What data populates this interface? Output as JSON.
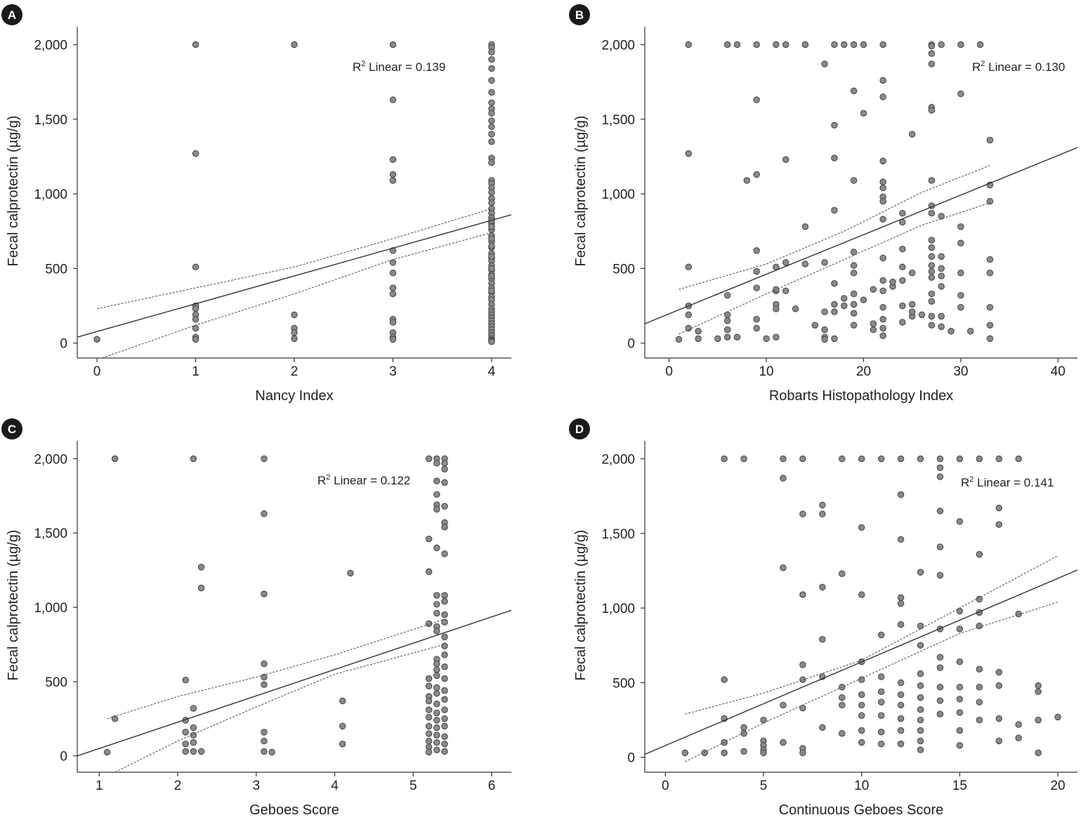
{
  "chart_data": [
    {
      "type": "scatter",
      "panel_label": "A",
      "xlabel": "Nancy Index",
      "ylabel": "Fecal calprotectin (µg/g)",
      "annotation_prefix": "R",
      "annotation_sup": "2",
      "annotation_rest": " Linear = 0.139",
      "xlim": [
        -0.2,
        4.2
      ],
      "ylim": [
        -100,
        2120
      ],
      "x_ticks": [
        0,
        1,
        2,
        3,
        4
      ],
      "x_tick_labels": [
        "0",
        "1",
        "2",
        "3",
        "4"
      ],
      "y_ticks": [
        0,
        500,
        1000,
        1500,
        2000
      ],
      "y_tick_labels": [
        "0",
        "500",
        "1,000",
        "1,500",
        "2,000"
      ],
      "fit_line": [
        [
          -0.2,
          40
        ],
        [
          4.2,
          860
        ]
      ],
      "ci_upper": [
        [
          0,
          230
        ],
        [
          1,
          370
        ],
        [
          2,
          510
        ],
        [
          3,
          700
        ],
        [
          4,
          900
        ]
      ],
      "ci_lower": [
        [
          0.05,
          -100
        ],
        [
          1,
          120
        ],
        [
          2,
          330
        ],
        [
          3,
          560
        ],
        [
          4,
          740
        ]
      ],
      "x": [
        0,
        1,
        1,
        1,
        1,
        1,
        1,
        1,
        1,
        1,
        1,
        2,
        2,
        2,
        2,
        2,
        3,
        3,
        3,
        3,
        3,
        3,
        3,
        3,
        3,
        3,
        3,
        3,
        3,
        3,
        3,
        4,
        4,
        4,
        4,
        4,
        4,
        4,
        4,
        4,
        4,
        4,
        4,
        4,
        4,
        4,
        4,
        4,
        4,
        4,
        4,
        4,
        4,
        4,
        4,
        4,
        4,
        4,
        4,
        4,
        4,
        4,
        4,
        4,
        4,
        4,
        4,
        4,
        4,
        4,
        4,
        4,
        4,
        4,
        4,
        4,
        4,
        4,
        4,
        4,
        4,
        4,
        4,
        4,
        4,
        4,
        4,
        4,
        4,
        4,
        4,
        4,
        4,
        4,
        4,
        4
      ],
      "y": [
        25,
        2000,
        1270,
        510,
        250,
        230,
        190,
        160,
        100,
        40,
        25,
        2000,
        190,
        100,
        70,
        30,
        2000,
        1630,
        1230,
        1130,
        1090,
        620,
        540,
        470,
        370,
        330,
        160,
        140,
        70,
        40,
        25,
        2000,
        1980,
        1950,
        1900,
        1840,
        1760,
        1680,
        1610,
        1570,
        1540,
        1490,
        1450,
        1400,
        1350,
        1240,
        1210,
        1090,
        1070,
        1040,
        1010,
        970,
        940,
        900,
        870,
        840,
        800,
        760,
        720,
        680,
        640,
        600,
        570,
        550,
        520,
        490,
        460,
        430,
        400,
        370,
        340,
        310,
        290,
        260,
        230,
        210,
        190,
        170,
        150,
        130,
        110,
        90,
        70,
        50,
        30,
        20,
        15,
        10,
        350,
        450,
        500,
        580,
        650,
        700,
        780,
        820
      ]
    },
    {
      "type": "scatter",
      "panel_label": "B",
      "xlabel": "Robarts Histopathology Index",
      "ylabel": "Fecal calprotectin (µg/g)",
      "annotation_prefix": "R",
      "annotation_sup": "2",
      "annotation_rest": " Linear = 0.130",
      "xlim": [
        -2.5,
        42
      ],
      "ylim": [
        -100,
        2120
      ],
      "x_ticks": [
        0,
        10,
        20,
        30,
        40
      ],
      "x_tick_labels": [
        "0",
        "10",
        "20",
        "30",
        "40"
      ],
      "y_ticks": [
        0,
        500,
        1000,
        1500,
        2000
      ],
      "y_tick_labels": [
        "0",
        "500",
        "1,000",
        "1,500",
        "2,000"
      ],
      "fit_line": [
        [
          -2.5,
          130
        ],
        [
          42,
          1310
        ]
      ],
      "ci_upper": [
        [
          1,
          360
        ],
        [
          10,
          530
        ],
        [
          18,
          750
        ],
        [
          26,
          1010
        ],
        [
          33,
          1190
        ]
      ],
      "ci_lower": [
        [
          1,
          60
        ],
        [
          10,
          330
        ],
        [
          18,
          560
        ],
        [
          26,
          790
        ],
        [
          33,
          940
        ]
      ],
      "x": [
        1,
        2,
        2,
        2,
        2,
        2,
        2,
        3,
        3,
        5,
        6,
        6,
        6,
        6,
        6,
        6,
        7,
        7,
        9,
        9,
        9,
        9,
        9,
        9,
        9,
        9,
        8,
        11,
        11,
        11,
        11,
        11,
        11,
        12,
        12,
        12,
        12,
        13,
        14,
        14,
        14,
        15,
        16,
        16,
        16,
        16,
        16,
        16,
        17,
        17,
        17,
        17,
        17,
        17,
        17,
        17,
        18,
        18,
        18,
        19,
        19,
        19,
        19,
        19,
        19,
        19,
        19,
        19,
        19,
        20,
        20,
        20,
        21,
        21,
        22,
        22,
        22,
        22,
        22,
        22,
        22,
        22,
        22,
        22,
        22,
        22,
        22,
        22,
        22,
        22,
        23,
        24,
        24,
        24,
        24,
        24,
        24,
        25,
        25,
        25,
        25,
        26,
        27,
        27,
        27,
        27,
        27,
        27,
        27,
        27,
        27,
        27,
        27,
        27,
        27,
        27,
        27,
        27,
        27,
        27,
        27,
        28,
        28,
        28,
        28,
        28,
        28,
        28,
        28,
        29,
        30,
        30,
        30,
        30,
        30,
        30,
        30,
        31,
        32,
        33,
        33,
        33,
        33,
        33,
        33,
        33,
        33,
        14,
        10,
        11,
        21,
        23,
        25,
        24
      ],
      "y": [
        25,
        2000,
        1270,
        510,
        250,
        190,
        100,
        80,
        30,
        30,
        2000,
        320,
        190,
        150,
        90,
        40,
        40,
        2000,
        2000,
        1630,
        1130,
        620,
        480,
        370,
        160,
        100,
        1090,
        2000,
        510,
        350,
        260,
        230,
        40,
        2000,
        1230,
        540,
        350,
        230,
        2000,
        780,
        530,
        120,
        1870,
        540,
        210,
        90,
        40,
        25,
        2000,
        1460,
        1240,
        890,
        400,
        260,
        210,
        30,
        2000,
        300,
        250,
        2000,
        1690,
        1090,
        610,
        520,
        470,
        330,
        260,
        200,
        120,
        2000,
        1540,
        290,
        360,
        90,
        2000,
        1760,
        1650,
        1220,
        1080,
        1040,
        980,
        950,
        830,
        570,
        420,
        350,
        240,
        160,
        100,
        50,
        380,
        870,
        810,
        630,
        510,
        250,
        140,
        1400,
        470,
        260,
        180,
        190,
        2000,
        1990,
        1940,
        1870,
        1580,
        1560,
        1090,
        920,
        870,
        690,
        640,
        580,
        520,
        480,
        440,
        330,
        280,
        180,
        120,
        2000,
        850,
        580,
        500,
        450,
        380,
        180,
        110,
        80,
        2000,
        1670,
        780,
        670,
        470,
        320,
        240,
        80,
        2000,
        1360,
        1060,
        950,
        560,
        470,
        240,
        120,
        30,
        2000,
        30,
        360,
        130,
        410,
        210,
        420
      ]
    },
    {
      "type": "scatter",
      "panel_label": "C",
      "xlabel": "Geboes Score",
      "ylabel": "Fecal calprotectin (µg/g)",
      "annotation_prefix": "R",
      "annotation_sup": "2",
      "annotation_rest": " Linear = 0.122",
      "xlim": [
        0.72,
        6.25
      ],
      "ylim": [
        -110,
        2120
      ],
      "x_ticks": [
        1,
        2,
        3,
        4,
        5,
        6
      ],
      "x_tick_labels": [
        "1",
        "2",
        "3",
        "4",
        "5",
        "6"
      ],
      "y_ticks": [
        0,
        500,
        1000,
        1500,
        2000
      ],
      "y_tick_labels": [
        "0",
        "500",
        "1,000",
        "1,500",
        "2,000"
      ],
      "fit_line": [
        [
          0.72,
          0
        ],
        [
          6.25,
          980
        ]
      ],
      "ci_upper": [
        [
          1.1,
          250
        ],
        [
          2,
          400
        ],
        [
          3,
          530
        ],
        [
          4,
          680
        ],
        [
          5.4,
          920
        ]
      ],
      "ci_lower": [
        [
          1.2,
          -110
        ],
        [
          2,
          100
        ],
        [
          3,
          330
        ],
        [
          4,
          550
        ],
        [
          5.4,
          750
        ]
      ],
      "x": [
        1.1,
        1.2,
        1.2,
        2.1,
        2.1,
        2.1,
        2.1,
        2.1,
        2.2,
        2.2,
        2.2,
        2.2,
        2.2,
        2.2,
        2.3,
        2.3,
        2.3,
        3.1,
        3.1,
        3.1,
        3.1,
        3.1,
        3.1,
        3.1,
        3.1,
        3.1,
        3.2,
        4.1,
        4.1,
        4.1,
        4.2,
        5.2,
        5.2,
        5.2,
        5.2,
        5.2,
        5.2,
        5.2,
        5.2,
        5.2,
        5.2,
        5.2,
        5.2,
        5.2,
        5.2,
        5.2,
        5.3,
        5.3,
        5.3,
        5.3,
        5.3,
        5.3,
        5.3,
        5.3,
        5.3,
        5.3,
        5.3,
        5.3,
        5.3,
        5.3,
        5.3,
        5.3,
        5.3,
        5.3,
        5.3,
        5.3,
        5.3,
        5.3,
        5.3,
        5.3,
        5.3,
        5.4,
        5.4,
        5.4,
        5.4,
        5.4,
        5.4,
        5.4,
        5.4,
        5.4,
        5.4,
        5.4,
        5.4,
        5.4,
        5.4,
        5.4,
        5.4,
        5.4,
        5.4,
        5.4,
        5.4,
        5.4,
        5.4,
        5.4,
        5.4,
        5.4
      ],
      "y": [
        25,
        2000,
        250,
        510,
        240,
        160,
        80,
        30,
        2000,
        320,
        190,
        140,
        90,
        30,
        1270,
        1130,
        30,
        2000,
        1630,
        1090,
        620,
        530,
        480,
        160,
        100,
        30,
        25,
        370,
        200,
        80,
        1230,
        2000,
        1460,
        1240,
        890,
        520,
        470,
        400,
        370,
        310,
        260,
        200,
        150,
        100,
        60,
        25,
        2000,
        1970,
        1850,
        1760,
        1690,
        1660,
        1400,
        1080,
        1020,
        960,
        870,
        840,
        650,
        620,
        580,
        540,
        460,
        420,
        350,
        290,
        240,
        190,
        140,
        90,
        40,
        2000,
        1970,
        1930,
        1840,
        1680,
        1570,
        1540,
        1360,
        1080,
        1040,
        950,
        900,
        800,
        740,
        680,
        600,
        520,
        440,
        380,
        310,
        250,
        200,
        130,
        80,
        30
      ]
    },
    {
      "type": "scatter",
      "panel_label": "D",
      "xlabel": "Continuous Geboes Score",
      "ylabel": "Fecal calprotectin (µg/g)",
      "annotation_prefix": "R",
      "annotation_sup": "2",
      "annotation_rest": " Linear = 0.141",
      "xlim": [
        -1.05,
        21
      ],
      "ylim": [
        -100,
        2120
      ],
      "x_ticks": [
        0,
        5,
        10,
        15,
        20
      ],
      "x_tick_labels": [
        "0",
        "5",
        "10",
        "15",
        "20"
      ],
      "y_ticks": [
        0,
        500,
        1000,
        1500,
        2000
      ],
      "y_tick_labels": [
        "0",
        "500",
        "1,000",
        "1,500",
        "2,000"
      ],
      "fit_line": [
        [
          -1.05,
          20
        ],
        [
          21,
          1255
        ]
      ],
      "ci_upper": [
        [
          1,
          290
        ],
        [
          5,
          430
        ],
        [
          10,
          650
        ],
        [
          15,
          1000
        ],
        [
          20,
          1350
        ]
      ],
      "ci_lower": [
        [
          1,
          -30
        ],
        [
          5,
          230
        ],
        [
          10,
          530
        ],
        [
          15,
          830
        ],
        [
          20,
          1040
        ]
      ],
      "x": [
        1,
        2,
        3,
        3,
        3,
        3,
        3,
        4,
        4,
        4,
        4,
        5,
        5,
        5,
        5,
        5,
        6,
        6,
        6,
        6,
        6,
        7,
        7,
        7,
        7,
        7,
        7,
        7,
        7,
        8,
        8,
        8,
        8,
        8,
        8,
        9,
        9,
        9,
        9,
        9,
        9,
        10,
        10,
        10,
        10,
        10,
        10,
        10,
        10,
        10,
        10,
        11,
        11,
        11,
        11,
        11,
        11,
        11,
        11,
        12,
        12,
        12,
        12,
        12,
        12,
        12,
        12,
        12,
        12,
        12,
        12,
        13,
        13,
        13,
        13,
        13,
        13,
        13,
        13,
        13,
        13,
        13,
        13,
        14,
        14,
        14,
        14,
        14,
        14,
        14,
        14,
        14,
        14,
        14,
        14,
        15,
        15,
        15,
        15,
        15,
        15,
        15,
        15,
        15,
        15,
        16,
        16,
        16,
        16,
        16,
        16,
        16,
        16,
        16,
        17,
        17,
        17,
        17,
        17,
        17,
        17,
        18,
        18,
        18,
        18,
        19,
        19,
        19,
        19,
        20
      ],
      "y": [
        30,
        30,
        2000,
        520,
        260,
        100,
        30,
        2000,
        200,
        160,
        40,
        250,
        110,
        80,
        50,
        30,
        2000,
        1870,
        1270,
        350,
        100,
        2000,
        1630,
        1090,
        620,
        520,
        330,
        60,
        30,
        1690,
        1630,
        1140,
        790,
        540,
        200,
        2000,
        1230,
        470,
        400,
        350,
        160,
        2000,
        1540,
        1090,
        640,
        520,
        420,
        350,
        280,
        180,
        100,
        2000,
        820,
        540,
        440,
        370,
        280,
        170,
        90,
        2000,
        1760,
        1460,
        1070,
        1030,
        890,
        500,
        420,
        350,
        260,
        180,
        90,
        2000,
        1240,
        880,
        750,
        560,
        480,
        400,
        320,
        250,
        180,
        110,
        50,
        2000,
        1940,
        1880,
        1650,
        1410,
        1220,
        860,
        670,
        600,
        470,
        380,
        290,
        2000,
        1580,
        980,
        860,
        640,
        470,
        390,
        300,
        180,
        80,
        2000,
        1360,
        1060,
        970,
        880,
        590,
        470,
        370,
        250,
        2000,
        1670,
        1560,
        570,
        480,
        260,
        110,
        2000,
        960,
        220,
        130,
        480,
        440,
        250,
        30,
        270
      ]
    }
  ]
}
